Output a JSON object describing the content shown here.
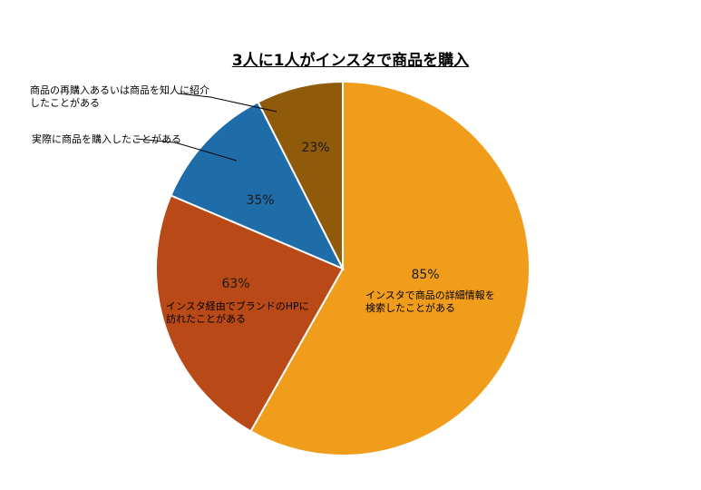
{
  "chart_data": {
    "type": "pie",
    "title": "3人に1人がインスタで商品を購入",
    "start_angle_deg": 0,
    "direction": "clockwise",
    "slices": [
      {
        "value_share": 0.582,
        "percent_label": "85%",
        "label_lines": [
          "インスタで商品の詳細情報を",
          "検索したことがある"
        ],
        "color": "#F09D1C"
      },
      {
        "value_share": 0.232,
        "percent_label": "63%",
        "label_lines": [
          "インスタ経由でブランドのHPに",
          "訪れたことがある"
        ],
        "color": "#B94A18"
      },
      {
        "value_share": 0.111,
        "percent_label": "35%",
        "label_lines": [
          "実際に商品を購入したことがある"
        ],
        "color": "#1F6DA8"
      },
      {
        "value_share": 0.075,
        "percent_label": "23%",
        "label_lines": [
          "商品の再購入あるいは商品を知人に紹介",
          "したことがある"
        ],
        "color": "#8F5A0A"
      }
    ]
  }
}
